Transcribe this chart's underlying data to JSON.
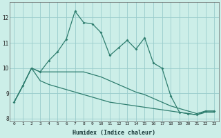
{
  "xlabel": "Humidex (Indice chaleur)",
  "bg_color": "#cceee8",
  "grid_color": "#99cccc",
  "line_color": "#2e7d6e",
  "x_values": [
    0,
    1,
    2,
    3,
    4,
    5,
    6,
    7,
    8,
    9,
    10,
    11,
    12,
    13,
    14,
    15,
    16,
    17,
    18,
    19,
    20,
    21,
    22,
    23
  ],
  "line1_y": [
    8.65,
    9.3,
    10.0,
    9.85,
    10.3,
    10.65,
    11.15,
    12.25,
    11.8,
    11.75,
    11.4,
    10.5,
    10.8,
    11.1,
    10.75,
    11.2,
    10.2,
    10.0,
    8.9,
    8.25,
    8.2,
    8.15,
    8.3,
    8.3
  ],
  "line2_y": [
    8.65,
    9.3,
    10.0,
    9.85,
    9.85,
    9.85,
    9.85,
    9.85,
    9.85,
    9.75,
    9.65,
    9.5,
    9.35,
    9.2,
    9.05,
    8.95,
    8.8,
    8.65,
    8.5,
    8.4,
    8.3,
    8.2,
    8.3,
    8.3
  ],
  "line3_y": [
    8.65,
    9.3,
    10.0,
    9.5,
    9.35,
    9.25,
    9.15,
    9.05,
    8.95,
    8.85,
    8.75,
    8.65,
    8.6,
    8.55,
    8.5,
    8.45,
    8.4,
    8.35,
    8.3,
    8.25,
    8.2,
    8.15,
    8.25,
    8.25
  ],
  "ylim": [
    7.9,
    12.6
  ],
  "yticks": [
    8,
    9,
    10,
    11,
    12
  ],
  "xticks": [
    0,
    1,
    2,
    3,
    4,
    5,
    6,
    7,
    8,
    9,
    10,
    11,
    12,
    13,
    14,
    15,
    16,
    17,
    18,
    19,
    20,
    21,
    22,
    23
  ]
}
